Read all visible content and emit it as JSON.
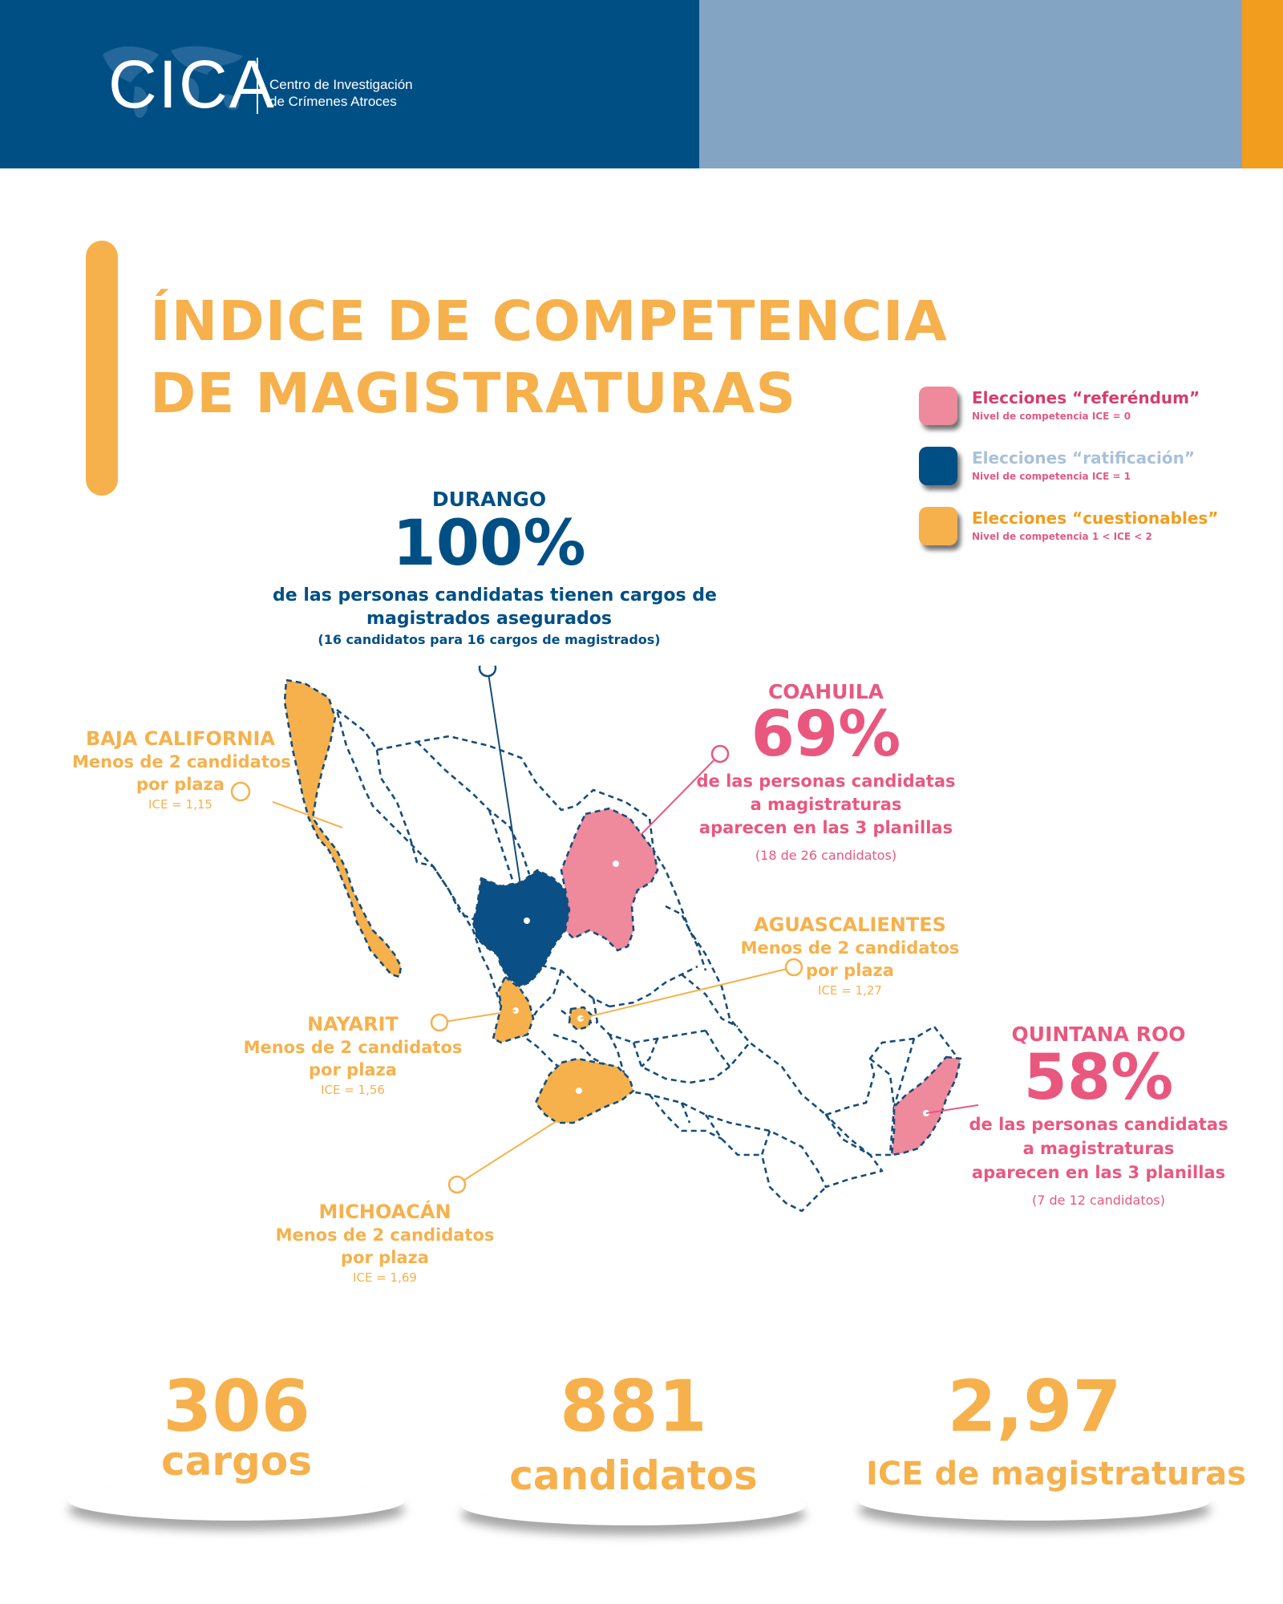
{
  "header": {
    "logo": "CICA",
    "org_line1": "Centro de Investigación",
    "org_line2": "de Crímenes Atroces",
    "colors": {
      "dark": "#004f84",
      "light": "#84a4c3",
      "accent": "#f29d1e"
    }
  },
  "title": {
    "line1": "ÍNDICE DE COMPETENCIA",
    "line2": "DE MAGISTRATURAS"
  },
  "legend": [
    {
      "label": "Elecciones “referéndum”",
      "sub": "Nivel de competencia ICE = 0",
      "color": "#ee8a9c"
    },
    {
      "label": "Elecciones “ratificación”",
      "sub": "Nivel de competencia ICE = 1",
      "color": "#004f84"
    },
    {
      "label": "Elecciones “cuestionables”",
      "sub": "Nivel de competencia 1 < ICE < 2",
      "color": "#f6b14c"
    }
  ],
  "callouts": {
    "durango": {
      "state": "DURANGO",
      "value": "100%",
      "desc1": "de las personas candidatas  tienen cargos de",
      "desc2": "magistrados asegurados",
      "note": "(16 candidatos para 16 cargos de magistrados)"
    },
    "coahuila": {
      "state": "COAHUILA",
      "value": "69%",
      "desc1": "de las personas candidatas",
      "desc2": "a magistraturas",
      "desc3": "aparecen en las 3 planillas",
      "note": "(18 de 26 candidatos)"
    },
    "baja_california": {
      "state": "BAJA CALIFORNIA",
      "desc1": "Menos de 2 candidatos",
      "desc2": "por plaza",
      "ice": "ICE = 1,15"
    },
    "aguascalientes": {
      "state": "AGUASCALIENTES",
      "desc1": "Menos de 2 candidatos",
      "desc2": "por plaza",
      "ice": "ICE = 1,27"
    },
    "nayarit": {
      "state": "NAYARIT",
      "desc1": "Menos de 2 candidatos",
      "desc2": "por plaza",
      "ice": "ICE = 1,56"
    },
    "quintana_roo": {
      "state": "QUINTANA ROO",
      "value": "58%",
      "desc1": "de las personas candidatas",
      "desc2": "a magistraturas",
      "desc3": "aparecen en las 3 planillas",
      "note": "(7 de 12 candidatos)"
    },
    "michoacan": {
      "state": "MICHOACÁN",
      "desc1": "Menos de 2 candidatos",
      "desc2": "por plaza",
      "ice": "ICE = 1,69"
    }
  },
  "stats": [
    {
      "value": "306",
      "label": "cargos"
    },
    {
      "value": "881",
      "label": "candidatos"
    },
    {
      "value": "2,97",
      "label": "ICE de magistraturas"
    }
  ]
}
